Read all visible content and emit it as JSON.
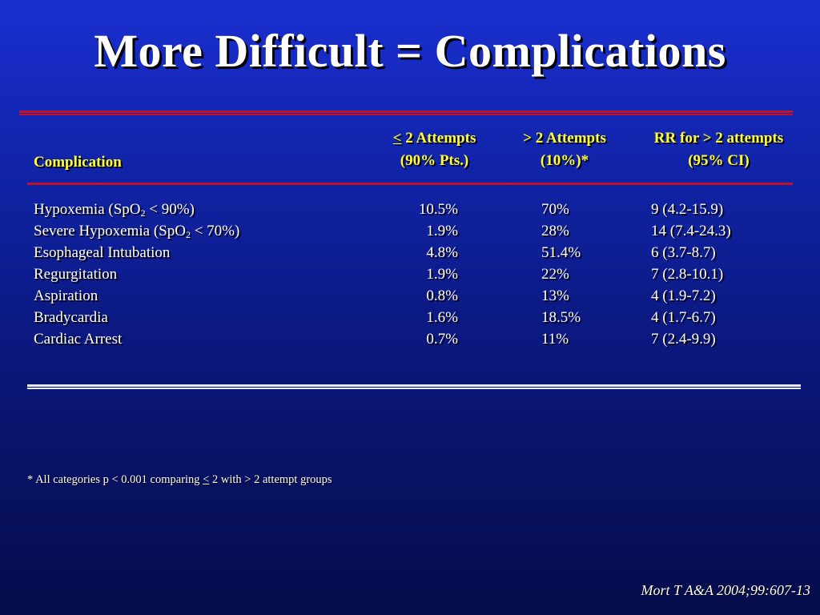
{
  "slide": {
    "title": "More Difficult = Complications",
    "footnote": {
      "prefix": "* All categories p < 0.001 comparing ",
      "lte": "<",
      "suffix": " 2 with > 2 attempt groups"
    },
    "citation": "Mort T A&A 2004;99:607-13"
  },
  "table": {
    "headers": {
      "complication": "Complication",
      "col1_symbol": "<",
      "col1_line1_rest": " 2 Attempts",
      "col1_line2": "(90% Pts.)",
      "col2_line1": "> 2 Attempts",
      "col2_line2": "(10%)*",
      "col3_line1": "RR for > 2 attempts",
      "col3_line2": "(95% CI)"
    },
    "rows": [
      {
        "name_pre": "Hypoxemia (SpO",
        "name_sub": "2",
        "name_post": " < 90%)",
        "lte2": "10.5%",
        "gt2": "70%",
        "rr": "9 (4.2-15.9)"
      },
      {
        "name_pre": "Severe Hypoxemia (SpO",
        "name_sub": "2",
        "name_post": " < 70%)",
        "lte2": "1.9%",
        "gt2": "28%",
        "rr": "14 (7.4-24.3)"
      },
      {
        "name_pre": "Esophageal Intubation",
        "lte2": "4.8%",
        "gt2": "51.4%",
        "rr": "6 (3.7-8.7)"
      },
      {
        "name_pre": "Regurgitation",
        "lte2": "1.9%",
        "gt2": "22%",
        "rr": "7 (2.8-10.1)"
      },
      {
        "name_pre": "Aspiration",
        "lte2": "0.8%",
        "gt2": "13%",
        "rr": "4 (1.9-7.2)"
      },
      {
        "name_pre": "Bradycardia",
        "lte2": "1.6%",
        "gt2": "18.5%",
        "rr": "4 (1.7-6.7)"
      },
      {
        "name_pre": "Cardiac Arrest",
        "lte2": "0.7%",
        "gt2": "11%",
        "rr": "7 (2.4-9.9)"
      }
    ]
  }
}
